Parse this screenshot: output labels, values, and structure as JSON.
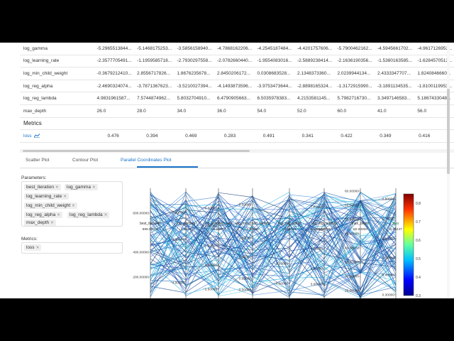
{
  "params_table": {
    "rows": [
      {
        "name": "log_gamma",
        "values": [
          "-5.2965513844...",
          "-5.1468175253...",
          "-3.5856158940...",
          "-4.7868162206...",
          "-4.2545187484...",
          "-4.4201757606...",
          "-5.7900462162...",
          "-4.5945661702...",
          "-4.9617126952..."
        ]
      },
      {
        "name": "log_learning_rate",
        "values": [
          "-2.3577705491...",
          "-1.1959585718...",
          "-2.7930297558...",
          "-2.0782660440...",
          "-1.9554083016...",
          "-2.5889238414...",
          "-2.1636190356...",
          "-1.5380163585...",
          "-1.6284570512..."
        ]
      },
      {
        "name": "log_min_child_weight",
        "values": [
          "-0.3679212410...",
          "2.8556717826...",
          "1.8676235678...",
          "2.8450206172...",
          "0.0308683528...",
          "2.1348373360...",
          "2.0239944134...",
          "2.4333347707...",
          "1.8240846660..."
        ]
      },
      {
        "name": "log_reg_alpha",
        "values": [
          "-2.4690324074...",
          "-3.7871367623...",
          "-3.5210027394...",
          "-4.1493873596...",
          "-3.9753473644...",
          "-2.8898165324...",
          "-1.3172915990...",
          "-3.1891134535...",
          "-1.8100119953..."
        ]
      },
      {
        "name": "log_reg_lambda",
        "values": [
          "4.9831961587...",
          "7.5744874962...",
          "5.8032704910...",
          "6.4790905663...",
          "6.5035978383...",
          "4.2153581145...",
          "5.7982716730...",
          "3.3497146583...",
          "5.1867433048..."
        ]
      },
      {
        "name": "max_depth",
        "values": [
          "26.0",
          "28.0",
          "34.0",
          "36.0",
          "54.0",
          "52.0",
          "60.0",
          "41.0",
          "56.0"
        ]
      }
    ]
  },
  "metrics": {
    "title": "Metrics",
    "rows": [
      {
        "name": "loss",
        "values": [
          "0.476",
          "0.394",
          "0.469",
          "0.283",
          "0.491",
          "0.341",
          "0.422",
          "0.349",
          "0.416"
        ]
      }
    ]
  },
  "tabs": [
    {
      "label": "Scatter Plot",
      "active": false
    },
    {
      "label": "Contour Plot",
      "active": false
    },
    {
      "label": "Parallel Coordinates Plot",
      "active": true
    }
  ],
  "parameters": {
    "label": "Parameters:",
    "chips": [
      "best_iteration",
      "log_gamma",
      "log_learning_rate",
      "log_min_child_weight",
      "log_reg_alpha",
      "log_reg_lambda",
      "max_depth"
    ]
  },
  "metrics_select": {
    "label": "Metrics:",
    "chips": [
      "loss"
    ]
  },
  "chart_data": {
    "type": "parallel_coordinates",
    "axes": [
      {
        "name": "best_iteration",
        "top_value": "999.00000",
        "ticks": [
          "600.00000",
          "400.00000",
          "200.00000"
        ]
      },
      {
        "name": "log_gamma",
        "top_value": "−1.01940",
        "ticks": [
          "−2.00000",
          "−3.00000",
          "−4.00000"
        ]
      },
      {
        "name": "log_learning_rate",
        "top_value": "−0.02673",
        "ticks": [
          "−0.50000",
          "−1.00000",
          "−1.50000",
          "−2.00000",
          "−2.50000"
        ]
      },
      {
        "name": "log_min_child_weight",
        "top_value": "2.99965",
        "ticks": [
          "2.50000",
          "1.50000",
          "1.00000",
          "0.50000",
          "0.00000",
          "−0.50000"
        ]
      },
      {
        "name": "log_reg_alpha",
        "top_value": "−1.01721",
        "ticks": [
          "−3.50000",
          "−4.00000"
        ]
      },
      {
        "name": "log_reg_lambda",
        "top_value": "7.93969",
        "ticks": [
          "7.00000",
          "6.00000",
          "5.00000",
          "4.00000",
          "3.00000"
        ]
      },
      {
        "name": "max_depth",
        "top_value": "60.00000",
        "ticks": [
          "60.00000",
          "55.00000",
          "50.00000",
          "45.00000",
          "40.00000",
          "35.00000",
          "30.00000",
          "25.00000"
        ]
      },
      {
        "name": "loss",
        "top_value": "0.84247",
        "ticks": [
          "0.80000",
          "0.70000",
          "0.60000",
          "0.50000",
          "0.40000",
          "0.30000"
        ]
      }
    ],
    "colorbar": {
      "min": 0.3,
      "max": 0.85,
      "ticks": [
        "0.8",
        "0.7",
        "0.6",
        "0.5",
        "0.4",
        "0.3"
      ]
    }
  }
}
